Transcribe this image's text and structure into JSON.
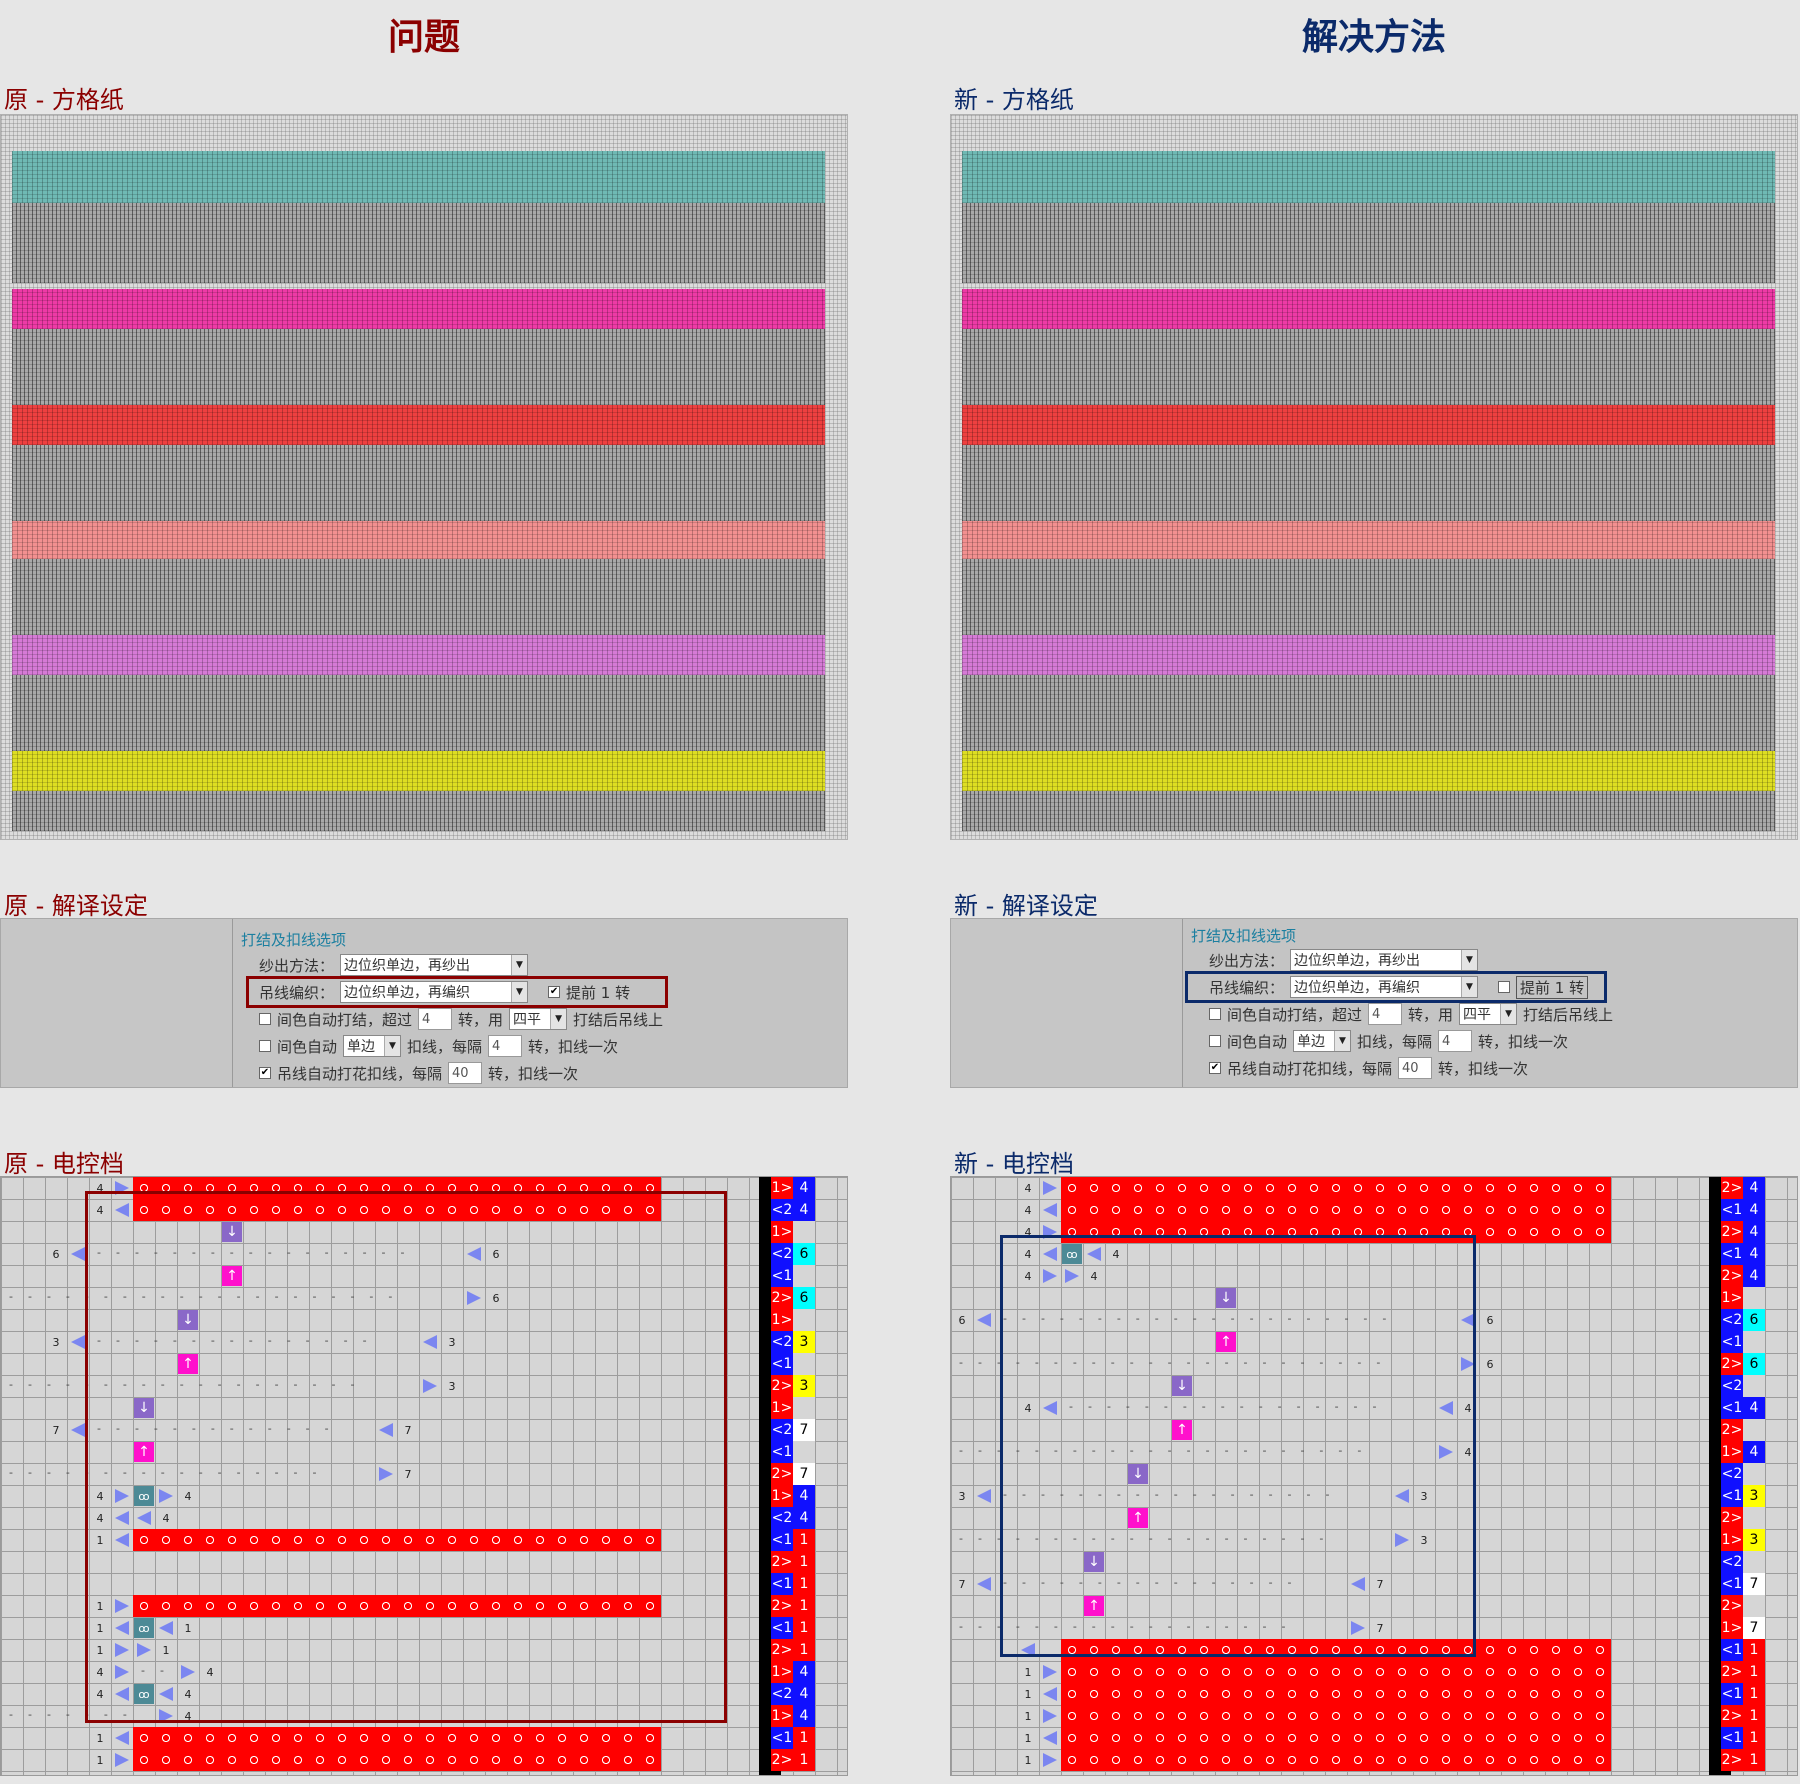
{
  "left": {
    "column_title": "问题",
    "grid_label": "原 - 方格纸",
    "settings_label": "原 - 解译设定",
    "control_label": "原 - 电控档",
    "settings": {
      "group_title": "打结及扣线选项",
      "yarn_out_label": "纱出方法：",
      "yarn_out_value": "边位织单边，再纱出",
      "hang_knit_label": "吊线编织：",
      "hang_knit_value": "边位织单边，再编织",
      "advance_checked": "✔",
      "advance_label": "提前 1 转",
      "auto_knot_label": "间色自动打结，超过",
      "auto_knot_value": "4",
      "auto_knot_mid": "转，用",
      "auto_knot_combo": "四平",
      "auto_knot_tail": "打结后吊线上",
      "auto_label": "间色自动",
      "auto_combo": "单边",
      "auto_mid": "扣线，每隔",
      "auto_value": "4",
      "auto_tail": "转，扣线一次",
      "hang_auto_checked": "✔",
      "hang_auto_label": "吊线自动打花扣线，每隔",
      "hang_auto_value": "40",
      "hang_auto_tail": "转，扣线一次"
    }
  },
  "right": {
    "column_title": "解决方法",
    "grid_label": "新 - 方格纸",
    "settings_label": "新 - 解译设定",
    "control_label": "新 - 电控档",
    "settings": {
      "group_title": "打结及扣线选项",
      "yarn_out_label": "纱出方法：",
      "yarn_out_value": "边位织单边，再纱出",
      "hang_knit_label": "吊线编织：",
      "hang_knit_value": "边位织单边，再编织",
      "advance_checked": "",
      "advance_label": "提前 1 转",
      "auto_knot_label": "间色自动打结，超过",
      "auto_knot_value": "4",
      "auto_knot_mid": "转，用",
      "auto_knot_combo": "四平",
      "auto_knot_tail": "打结后吊线上",
      "auto_label": "间色自动",
      "auto_combo": "单边",
      "auto_mid": "扣线，每隔",
      "auto_value": "4",
      "auto_tail": "转，扣线一次",
      "hang_auto_checked": "✔",
      "hang_auto_label": "吊线自动打花扣线，每隔",
      "hang_auto_value": "40",
      "hang_auto_tail": "转，扣线一次"
    }
  },
  "colors": {
    "problem_accent": "#8b0000",
    "solution_accent": "#0b2a6a",
    "teal_band": "#6fb9b4",
    "pink_band": "#ee3aa6",
    "red_band": "#ee4040",
    "salmon_band": "#f29090",
    "violet_band": "#d67ad6",
    "yellow_band": "#dede22",
    "gray_band": "#a9a9a9"
  },
  "icons": [
    "arrow-down-block-icon",
    "arrow-up-block-icon",
    "triangle-right-icon",
    "triangle-left-icon",
    "knot-icon",
    "checkbox-icon",
    "dropdown-arrow-icon"
  ],
  "left_numbers": {
    "n4": "4",
    "n6": "6",
    "n3": "3",
    "n7": "7",
    "n1": "1"
  },
  "right_numbers": {
    "n4": "4",
    "n6": "6",
    "n3": "3",
    "n7": "7",
    "n1": "1"
  },
  "left_status": [
    {
      "dir": "1>",
      "num": "4",
      "dc": "red",
      "nc": "blue"
    },
    {
      "dir": "<2",
      "num": "4",
      "dc": "blue",
      "nc": "blue"
    },
    {
      "dir": "1>",
      "num": "",
      "dc": "red",
      "nc": "gry"
    },
    {
      "dir": "<2",
      "num": "6",
      "dc": "blue",
      "nc": "cyan"
    },
    {
      "dir": "<1",
      "num": "",
      "dc": "blue",
      "nc": "gry"
    },
    {
      "dir": "2>",
      "num": "6",
      "dc": "red",
      "nc": "cyan"
    },
    {
      "dir": "1>",
      "num": "",
      "dc": "red",
      "nc": "gry"
    },
    {
      "dir": "<2",
      "num": "3",
      "dc": "blue",
      "nc": "yel"
    },
    {
      "dir": "<1",
      "num": "",
      "dc": "blue",
      "nc": "gry"
    },
    {
      "dir": "2>",
      "num": "3",
      "dc": "red",
      "nc": "yel"
    },
    {
      "dir": "1>",
      "num": "",
      "dc": "red",
      "nc": "gry"
    },
    {
      "dir": "<2",
      "num": "7",
      "dc": "blue",
      "nc": "wht"
    },
    {
      "dir": "<1",
      "num": "",
      "dc": "blue",
      "nc": "gry"
    },
    {
      "dir": "2>",
      "num": "7",
      "dc": "red",
      "nc": "wht"
    },
    {
      "dir": "1>",
      "num": "4",
      "dc": "red",
      "nc": "blue"
    },
    {
      "dir": "<2",
      "num": "4",
      "dc": "blue",
      "nc": "blue"
    },
    {
      "dir": "<1",
      "num": "1",
      "dc": "blue",
      "nc": "red"
    },
    {
      "dir": "2>",
      "num": "1",
      "dc": "red",
      "nc": "red"
    },
    {
      "dir": "<1",
      "num": "1",
      "dc": "blue",
      "nc": "red"
    },
    {
      "dir": "2>",
      "num": "1",
      "dc": "red",
      "nc": "red"
    },
    {
      "dir": "<1",
      "num": "1",
      "dc": "blue",
      "nc": "red"
    },
    {
      "dir": "2>",
      "num": "1",
      "dc": "red",
      "nc": "red"
    },
    {
      "dir": "1>",
      "num": "4",
      "dc": "red",
      "nc": "blue"
    },
    {
      "dir": "<2",
      "num": "4",
      "dc": "blue",
      "nc": "blue"
    },
    {
      "dir": "1>",
      "num": "4",
      "dc": "red",
      "nc": "blue"
    },
    {
      "dir": "<1",
      "num": "1",
      "dc": "blue",
      "nc": "red"
    },
    {
      "dir": "2>",
      "num": "1",
      "dc": "red",
      "nc": "red"
    }
  ],
  "right_status": [
    {
      "dir": "2>",
      "num": "4",
      "dc": "red",
      "nc": "blue"
    },
    {
      "dir": "<1",
      "num": "4",
      "dc": "blue",
      "nc": "blue"
    },
    {
      "dir": "2>",
      "num": "4",
      "dc": "red",
      "nc": "blue"
    },
    {
      "dir": "<1",
      "num": "4",
      "dc": "blue",
      "nc": "blue"
    },
    {
      "dir": "2>",
      "num": "4",
      "dc": "red",
      "nc": "blue"
    },
    {
      "dir": "1>",
      "num": "",
      "dc": "red",
      "nc": "gry"
    },
    {
      "dir": "<2",
      "num": "6",
      "dc": "blue",
      "nc": "cyan"
    },
    {
      "dir": "<1",
      "num": "",
      "dc": "blue",
      "nc": "gry"
    },
    {
      "dir": "2>",
      "num": "6",
      "dc": "red",
      "nc": "cyan"
    },
    {
      "dir": "<2",
      "num": "",
      "dc": "blue",
      "nc": "gry"
    },
    {
      "dir": "<1",
      "num": "4",
      "dc": "blue",
      "nc": "blue"
    },
    {
      "dir": "2>",
      "num": "",
      "dc": "red",
      "nc": "gry"
    },
    {
      "dir": "1>",
      "num": "4",
      "dc": "red",
      "nc": "blue"
    },
    {
      "dir": "<2",
      "num": "",
      "dc": "blue",
      "nc": "gry"
    },
    {
      "dir": "<1",
      "num": "3",
      "dc": "blue",
      "nc": "yel"
    },
    {
      "dir": "2>",
      "num": "",
      "dc": "red",
      "nc": "gry"
    },
    {
      "dir": "1>",
      "num": "3",
      "dc": "red",
      "nc": "yel"
    },
    {
      "dir": "<2",
      "num": "",
      "dc": "blue",
      "nc": "gry"
    },
    {
      "dir": "<1",
      "num": "7",
      "dc": "blue",
      "nc": "wht"
    },
    {
      "dir": "2>",
      "num": "",
      "dc": "red",
      "nc": "gry"
    },
    {
      "dir": "1>",
      "num": "7",
      "dc": "red",
      "nc": "wht"
    },
    {
      "dir": "<1",
      "num": "1",
      "dc": "blue",
      "nc": "red"
    },
    {
      "dir": "2>",
      "num": "1",
      "dc": "red",
      "nc": "red"
    },
    {
      "dir": "<1",
      "num": "1",
      "dc": "blue",
      "nc": "red"
    },
    {
      "dir": "2>",
      "num": "1",
      "dc": "red",
      "nc": "red"
    },
    {
      "dir": "<1",
      "num": "1",
      "dc": "blue",
      "nc": "red"
    },
    {
      "dir": "2>",
      "num": "1",
      "dc": "red",
      "nc": "red"
    }
  ]
}
